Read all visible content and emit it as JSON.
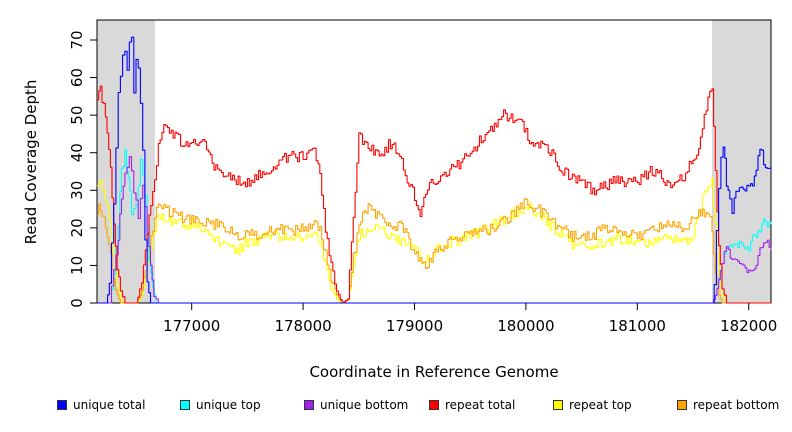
{
  "chart_data": {
    "type": "line",
    "title": "",
    "xlabel": "Coordinate in Reference Genome",
    "ylabel": "Read Coverage Depth",
    "xlim": [
      176150,
      182200
    ],
    "ylim": [
      0,
      75
    ],
    "xticks": [
      177000,
      178000,
      179000,
      180000,
      181000,
      182000
    ],
    "yticks": [
      0,
      10,
      20,
      30,
      40,
      50,
      60,
      70
    ],
    "shaded_regions": [
      {
        "x0": 176150,
        "x1": 176670
      },
      {
        "x0": 181670,
        "x1": 182200
      }
    ],
    "series": [
      {
        "name": "unique total",
        "color": "#0000ff",
        "x": [
          176150,
          176180,
          176230,
          176260,
          176280,
          176300,
          176320,
          176340,
          176360,
          176380,
          176400,
          176420,
          176440,
          176460,
          176480,
          176500,
          176520,
          176540,
          176560,
          176580,
          176600,
          176630,
          176650,
          176670,
          176700,
          177000,
          178000,
          179000,
          180000,
          181000,
          181670,
          181690,
          181710,
          181730,
          181750,
          181770,
          181800,
          181830,
          181850,
          181870,
          181900,
          181950,
          182000,
          182050,
          182100,
          182150,
          182200
        ],
        "values": [
          0,
          0,
          0,
          5,
          15,
          25,
          40,
          55,
          60,
          65,
          66,
          63,
          68,
          70,
          55,
          65,
          62,
          52,
          40,
          18,
          5,
          0,
          0,
          0,
          0,
          0,
          0,
          0,
          0,
          0,
          0,
          5,
          18,
          30,
          40,
          43,
          32,
          28,
          25,
          27,
          30,
          31,
          30,
          33,
          41,
          36,
          35
        ]
      },
      {
        "name": "unique top",
        "color": "#00ffff",
        "x": [
          176150,
          176260,
          176300,
          176340,
          176370,
          176400,
          176430,
          176460,
          176500,
          176540,
          176580,
          176620,
          176650,
          176680,
          176700,
          177000,
          178000,
          179000,
          180000,
          181000,
          181670,
          181700,
          181730,
          181760,
          181800,
          181850,
          181900,
          181950,
          182000,
          182050,
          182100,
          182150,
          182200
        ],
        "values": [
          0,
          0,
          8,
          22,
          35,
          40,
          32,
          25,
          27,
          38,
          30,
          12,
          4,
          0,
          0,
          0,
          0,
          0,
          0,
          0,
          0,
          2,
          6,
          10,
          14,
          15,
          16,
          14,
          15,
          18,
          20,
          22,
          21
        ]
      },
      {
        "name": "unique bottom",
        "color": "#a020f0",
        "x": [
          176150,
          176260,
          176300,
          176340,
          176370,
          176400,
          176440,
          176480,
          176520,
          176560,
          176600,
          176630,
          176660,
          176700,
          177000,
          178000,
          179000,
          180000,
          181000,
          181670,
          181700,
          181730,
          181760,
          181800,
          181850,
          181900,
          181950,
          182000,
          182050,
          182100,
          182150,
          182200
        ],
        "values": [
          0,
          0,
          10,
          18,
          27,
          34,
          38,
          30,
          24,
          32,
          20,
          10,
          2,
          0,
          0,
          0,
          0,
          0,
          0,
          0,
          2,
          6,
          12,
          15,
          12,
          10,
          9,
          8,
          10,
          14,
          16,
          14
        ]
      },
      {
        "name": "repeat total",
        "color": "#ff0000",
        "x": [
          176150,
          176180,
          176210,
          176240,
          176270,
          176300,
          176330,
          176360,
          176400,
          176450,
          176500,
          176550,
          176600,
          176650,
          176700,
          176750,
          176800,
          176900,
          177000,
          177100,
          177200,
          177300,
          177400,
          177500,
          177600,
          177700,
          177800,
          177900,
          178000,
          178100,
          178150,
          178200,
          178250,
          178300,
          178350,
          178400,
          178450,
          178500,
          178550,
          178600,
          178700,
          178800,
          178900,
          179000,
          179050,
          179100,
          179200,
          179300,
          179400,
          179500,
          179600,
          179700,
          179800,
          179900,
          180000,
          180050,
          180100,
          180200,
          180300,
          180400,
          180500,
          180600,
          180700,
          180800,
          180900,
          181000,
          181100,
          181200,
          181300,
          181400,
          181500,
          181550,
          181600,
          181650,
          181670,
          181700,
          181730,
          181760,
          181800,
          181850,
          181900,
          181950,
          182000,
          182200
        ],
        "values": [
          55,
          57,
          52,
          46,
          35,
          20,
          10,
          3,
          0,
          0,
          0,
          5,
          18,
          30,
          42,
          48,
          46,
          43,
          42,
          43,
          36,
          34,
          33,
          32,
          34,
          36,
          38,
          39,
          39,
          40,
          34,
          20,
          10,
          3,
          0,
          1,
          22,
          45,
          42,
          41,
          40,
          43,
          36,
          28,
          22,
          30,
          33,
          35,
          37,
          40,
          44,
          47,
          50,
          49,
          46,
          42,
          43,
          41,
          36,
          34,
          32,
          30,
          31,
          33,
          32,
          32,
          35,
          34,
          31,
          33,
          38,
          42,
          50,
          55,
          57,
          35,
          15,
          4,
          0,
          0,
          0,
          0,
          0,
          0
        ]
      },
      {
        "name": "repeat top",
        "color": "#ffff00",
        "x": [
          176150,
          176180,
          176210,
          176240,
          176270,
          176300,
          176330,
          176360,
          176400,
          176450,
          176500,
          176550,
          176600,
          176650,
          176700,
          176800,
          176900,
          177000,
          177100,
          177200,
          177300,
          177400,
          177500,
          177600,
          177700,
          177800,
          177900,
          178000,
          178100,
          178150,
          178200,
          178250,
          178300,
          178350,
          178400,
          178450,
          178500,
          178600,
          178700,
          178800,
          178900,
          179000,
          179050,
          179100,
          179200,
          179300,
          179400,
          179500,
          179600,
          179700,
          179800,
          179900,
          180000,
          180100,
          180200,
          180300,
          180400,
          180500,
          180600,
          180700,
          180800,
          180900,
          181000,
          181100,
          181200,
          181300,
          181400,
          181500,
          181550,
          181600,
          181650,
          181670,
          181700,
          181730,
          181760,
          181800,
          181850,
          181900,
          182200
        ],
        "values": [
          32,
          33,
          29,
          25,
          20,
          12,
          5,
          1,
          0,
          0,
          0,
          2,
          10,
          18,
          24,
          22,
          21,
          21,
          19,
          17,
          15,
          14,
          16,
          17,
          18,
          18,
          17,
          18,
          19,
          16,
          10,
          4,
          1,
          0,
          1,
          10,
          18,
          20,
          19,
          18,
          16,
          14,
          12,
          11,
          14,
          16,
          17,
          18,
          19,
          21,
          22,
          24,
          26,
          24,
          21,
          19,
          16,
          15,
          15,
          16,
          17,
          17,
          16,
          16,
          17,
          17,
          16,
          18,
          24,
          29,
          31,
          33,
          20,
          8,
          2,
          0,
          0,
          0,
          0
        ]
      },
      {
        "name": "repeat bottom",
        "color": "#ffa500",
        "x": [
          176150,
          176180,
          176210,
          176240,
          176270,
          176300,
          176330,
          176360,
          176400,
          176450,
          176500,
          176550,
          176600,
          176650,
          176700,
          176800,
          176900,
          177000,
          177100,
          177200,
          177300,
          177400,
          177500,
          177600,
          177700,
          177800,
          177900,
          178000,
          178100,
          178150,
          178200,
          178250,
          178300,
          178350,
          178400,
          178450,
          178500,
          178550,
          178600,
          178700,
          178800,
          178900,
          179000,
          179050,
          179100,
          179200,
          179300,
          179400,
          179500,
          179600,
          179700,
          179800,
          179900,
          180000,
          180100,
          180200,
          180300,
          180400,
          180500,
          180600,
          180700,
          180800,
          180900,
          181000,
          181100,
          181200,
          181300,
          181400,
          181500,
          181550,
          181600,
          181650,
          181670,
          181700,
          181730,
          181760,
          181800,
          181850,
          181900,
          182200
        ],
        "values": [
          24,
          26,
          22,
          18,
          13,
          6,
          2,
          0,
          0,
          0,
          0,
          3,
          12,
          20,
          26,
          24,
          23,
          22,
          21,
          21,
          20,
          18,
          19,
          18,
          19,
          20,
          19,
          20,
          21,
          19,
          14,
          6,
          2,
          0,
          1,
          12,
          20,
          25,
          26,
          22,
          21,
          20,
          13,
          11,
          10,
          14,
          16,
          17,
          18,
          19,
          20,
          22,
          24,
          27,
          25,
          23,
          20,
          18,
          17,
          18,
          20,
          20,
          19,
          18,
          19,
          20,
          21,
          20,
          22,
          25,
          24,
          22,
          20,
          8,
          2,
          0,
          0,
          0,
          0,
          0
        ]
      }
    ],
    "legend": "bottom"
  }
}
